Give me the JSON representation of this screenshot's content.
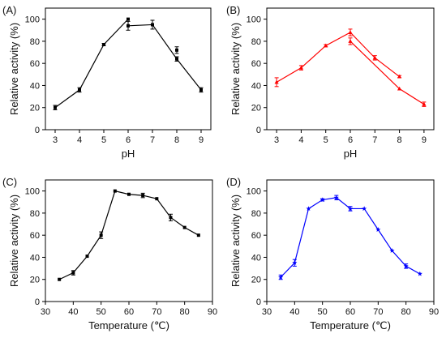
{
  "chart_data": [
    {
      "panel": "(A)",
      "type": "line",
      "color": "#000000",
      "marker": "square",
      "xlabel": "pH",
      "ylabel": "Relative activity (%)",
      "xlim": [
        2.6,
        9.4
      ],
      "ylim": [
        0,
        110
      ],
      "xticks": [
        3,
        4,
        5,
        6,
        7,
        8,
        9
      ],
      "yticks": [
        0,
        20,
        40,
        60,
        80,
        100
      ],
      "series": [
        {
          "x": [
            3,
            4,
            5,
            6
          ],
          "y": [
            20,
            36,
            77,
            100
          ],
          "err": [
            2,
            2,
            1,
            0
          ]
        },
        {
          "x": [
            6,
            7,
            8,
            9
          ],
          "y": [
            94,
            95,
            64,
            36
          ],
          "err": [
            4,
            4,
            2,
            2
          ]
        }
      ],
      "extra_points": [
        {
          "x": 8,
          "y": 72,
          "err": 3
        }
      ]
    },
    {
      "panel": "(B)",
      "type": "line",
      "color": "#ff0000",
      "marker": "triangle",
      "xlabel": "pH",
      "ylabel": "Relative activity (%)",
      "xlim": [
        2.6,
        9.4
      ],
      "ylim": [
        0,
        110
      ],
      "xticks": [
        3,
        4,
        5,
        6,
        7,
        8,
        9
      ],
      "yticks": [
        0,
        20,
        40,
        60,
        80,
        100
      ],
      "series": [
        {
          "x": [
            3,
            4,
            5,
            6,
            7,
            8
          ],
          "y": [
            43,
            56,
            76,
            88,
            65,
            48
          ],
          "err": [
            4,
            2,
            1,
            3,
            2,
            1
          ]
        },
        {
          "x": [
            6,
            8,
            9
          ],
          "y": [
            80,
            37,
            23
          ],
          "err": [
            3,
            0,
            2
          ]
        }
      ],
      "extra_points": []
    },
    {
      "panel": "(C)",
      "type": "line",
      "color": "#000000",
      "marker": "square",
      "xlabel": "Temperature (℃)",
      "ylabel": "Relative activity (%)",
      "xlim": [
        30,
        90
      ],
      "ylim": [
        0,
        110
      ],
      "xticks": [
        30,
        40,
        50,
        60,
        70,
        80,
        90
      ],
      "yticks": [
        0,
        20,
        40,
        60,
        80,
        100
      ],
      "series": [
        {
          "x": [
            35,
            40,
            45,
            50,
            55,
            60,
            65,
            70,
            75,
            80,
            85
          ],
          "y": [
            20,
            26,
            41,
            60,
            100,
            97,
            96,
            93,
            76,
            67,
            60
          ],
          "err": [
            0,
            2,
            0,
            3,
            0,
            0,
            2,
            0,
            3,
            0,
            0
          ]
        }
      ],
      "extra_points": []
    },
    {
      "panel": "(D)",
      "type": "line",
      "color": "#0000ff",
      "marker": "star",
      "xlabel": "Temperature (℃)",
      "ylabel": "Relative activity (%)",
      "xlim": [
        30,
        90
      ],
      "ylim": [
        0,
        110
      ],
      "xticks": [
        30,
        40,
        50,
        60,
        70,
        80,
        90
      ],
      "yticks": [
        0,
        20,
        40,
        60,
        80,
        100
      ],
      "series": [
        {
          "x": [
            35,
            40,
            45,
            50,
            55,
            60,
            65,
            70,
            75,
            80,
            85
          ],
          "y": [
            22,
            35,
            84,
            92,
            94,
            84,
            84,
            65,
            46,
            32,
            25
          ],
          "err": [
            2,
            3,
            0,
            1,
            2,
            2,
            0,
            0,
            0,
            2,
            0
          ]
        }
      ],
      "extra_points": []
    }
  ]
}
